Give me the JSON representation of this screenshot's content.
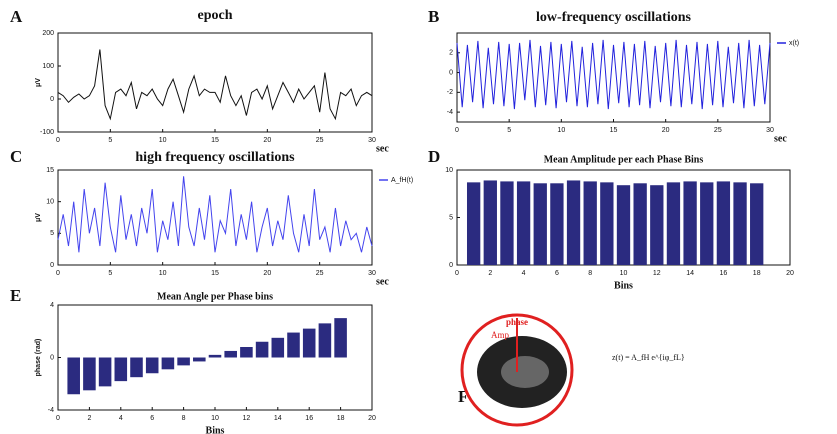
{
  "chart_data": [
    {
      "type": "line",
      "panel": "A",
      "title": "epoch",
      "ylabel": "μV",
      "xlabel": "sec",
      "x": [
        0,
        0.5,
        1,
        1.5,
        2,
        2.5,
        3,
        3.5,
        4,
        4.5,
        5,
        5.5,
        6,
        6.5,
        7,
        7.5,
        8,
        8.5,
        9,
        9.5,
        10,
        10.5,
        11,
        11.5,
        12,
        12.5,
        13,
        13.5,
        14,
        14.5,
        15,
        15.5,
        16,
        16.5,
        17,
        17.5,
        18,
        18.5,
        19,
        19.5,
        20,
        20.5,
        21,
        21.5,
        22,
        22.5,
        23,
        23.5,
        24,
        24.5,
        25,
        25.5,
        26,
        26.5,
        27,
        27.5,
        28,
        28.5,
        29,
        29.5,
        30
      ],
      "series": [
        {
          "color": "#111111",
          "values": [
            20,
            10,
            -10,
            5,
            15,
            0,
            10,
            40,
            150,
            -20,
            -60,
            20,
            30,
            10,
            50,
            -30,
            20,
            10,
            30,
            0,
            -20,
            30,
            60,
            10,
            -40,
            30,
            70,
            10,
            30,
            20,
            20,
            -10,
            70,
            10,
            -20,
            10,
            -50,
            20,
            30,
            0,
            40,
            -30,
            10,
            50,
            20,
            -10,
            30,
            0,
            20,
            40,
            -40,
            80,
            -30,
            -60,
            20,
            10,
            30,
            -20,
            10,
            20,
            10
          ]
        }
      ],
      "xlim": [
        0,
        30
      ],
      "xticks": [
        0,
        5,
        10,
        15,
        20,
        25,
        30
      ],
      "ylim": [
        -100,
        200
      ],
      "yticks": [
        -100,
        0,
        100,
        200
      ]
    },
    {
      "type": "line",
      "panel": "B",
      "title": "low-frequency oscillations",
      "xlabel": "sec",
      "x": [
        0,
        0.5,
        1,
        1.5,
        2,
        2.5,
        3,
        3.5,
        4,
        4.5,
        5,
        5.5,
        6,
        6.5,
        7,
        7.5,
        8,
        8.5,
        9,
        9.5,
        10,
        10.5,
        11,
        11.5,
        12,
        12.5,
        13,
        13.5,
        14,
        14.5,
        15,
        15.5,
        16,
        16.5,
        17,
        17.5,
        18,
        18.5,
        19,
        19.5,
        20,
        20.5,
        21,
        21.5,
        22,
        22.5,
        23,
        23.5,
        24,
        24.5,
        25,
        25.5,
        26,
        26.5,
        27,
        27.5,
        28,
        28.5,
        29,
        29.5,
        30
      ],
      "series": [
        {
          "name": "x(t)",
          "color": "#2222dd",
          "values": [
            3,
            -3.5,
            2.8,
            -3,
            3.2,
            -3.6,
            2.5,
            -3.2,
            3.1,
            -3.4,
            2.9,
            -3.7,
            3,
            -2.8,
            3.3,
            -3.5,
            2.7,
            -3.3,
            3.1,
            -3.6,
            2.9,
            -3,
            3.2,
            -3.4,
            2.6,
            -3.5,
            3,
            -3.2,
            3.3,
            -3.7,
            2.8,
            -3.1,
            3.1,
            -3.5,
            2.9,
            -3.3,
            3.2,
            -3.6,
            2.7,
            -3,
            3,
            -3.4,
            3.3,
            -3.5,
            2.8,
            -3.2,
            3.1,
            -3.7,
            2.9,
            -3.3,
            3.2,
            -3.5,
            2.6,
            -3.1,
            3,
            -3.6,
            3.3,
            -3.4,
            2.8,
            -3.2,
            3
          ]
        }
      ],
      "xlim": [
        0,
        30
      ],
      "xticks": [
        0,
        5,
        10,
        15,
        20,
        25,
        30
      ],
      "ylim": [
        -5,
        4
      ],
      "yticks": [
        -4,
        -2,
        0,
        2
      ]
    },
    {
      "type": "line",
      "panel": "C",
      "title": "high frequency oscillations",
      "ylabel": "μV",
      "xlabel": "sec",
      "x": [
        0,
        0.5,
        1,
        1.5,
        2,
        2.5,
        3,
        3.5,
        4,
        4.5,
        5,
        5.5,
        6,
        6.5,
        7,
        7.5,
        8,
        8.5,
        9,
        9.5,
        10,
        10.5,
        11,
        11.5,
        12,
        12.5,
        13,
        13.5,
        14,
        14.5,
        15,
        15.5,
        16,
        16.5,
        17,
        17.5,
        18,
        18.5,
        19,
        19.5,
        20,
        20.5,
        21,
        21.5,
        22,
        22.5,
        23,
        23.5,
        24,
        24.5,
        25,
        25.5,
        26,
        26.5,
        27,
        27.5,
        28,
        28.5,
        29,
        29.5,
        30
      ],
      "series": [
        {
          "name": "A_fH(t)",
          "color": "#4444ee",
          "values": [
            4,
            8,
            3,
            10,
            2,
            12,
            5,
            9,
            3,
            13,
            6,
            2,
            11,
            4,
            8,
            3,
            9,
            5,
            12,
            2,
            7,
            4,
            10,
            3,
            14,
            6,
            3,
            9,
            4,
            11,
            2,
            7,
            5,
            12,
            3,
            8,
            4,
            10,
            2,
            6,
            9,
            3,
            7,
            4,
            11,
            5,
            2,
            8,
            3,
            12,
            4,
            6,
            2,
            9,
            3,
            7,
            4,
            5,
            2,
            6,
            3
          ]
        }
      ],
      "xlim": [
        0,
        30
      ],
      "xticks": [
        0,
        5,
        10,
        15,
        20,
        25,
        30
      ],
      "ylim": [
        0,
        15
      ],
      "yticks": [
        0,
        5,
        10,
        15
      ]
    },
    {
      "type": "bar",
      "panel": "D",
      "title": "Mean Amplitude per each Phase Bins",
      "xlabel": "Bins",
      "color": "#2b2b80",
      "x": [
        1,
        2,
        3,
        4,
        5,
        6,
        7,
        8,
        9,
        10,
        11,
        12,
        13,
        14,
        15,
        16,
        17,
        18
      ],
      "values": [
        8.7,
        8.9,
        8.8,
        8.8,
        8.6,
        8.6,
        8.9,
        8.8,
        8.7,
        8.4,
        8.6,
        8.4,
        8.7,
        8.8,
        8.7,
        8.8,
        8.7,
        8.6
      ],
      "xlim": [
        0,
        20
      ],
      "xticks": [
        0,
        2,
        4,
        6,
        8,
        10,
        12,
        14,
        16,
        18,
        20
      ],
      "ylim": [
        0,
        10
      ],
      "yticks": [
        0,
        5,
        10
      ]
    },
    {
      "type": "bar",
      "panel": "E",
      "title": "Mean Angle per Phase bins",
      "ylabel": "phase (rad)",
      "xlabel": "Bins",
      "color": "#2b2b80",
      "x": [
        1,
        2,
        3,
        4,
        5,
        6,
        7,
        8,
        9,
        10,
        11,
        12,
        13,
        14,
        15,
        16,
        17,
        18
      ],
      "values": [
        -2.8,
        -2.5,
        -2.2,
        -1.8,
        -1.5,
        -1.2,
        -0.9,
        -0.6,
        -0.3,
        0.2,
        0.5,
        0.8,
        1.2,
        1.5,
        1.9,
        2.2,
        2.6,
        3
      ],
      "xlim": [
        0,
        20
      ],
      "xticks": [
        0,
        2,
        4,
        6,
        8,
        10,
        12,
        14,
        16,
        18,
        20
      ],
      "ylim": [
        -4,
        4
      ],
      "yticks": [
        -4,
        0,
        4
      ]
    }
  ],
  "panel_f": {
    "panel": "F",
    "phase_label": "phase",
    "amp_label": "Amp",
    "formula": "z(t) = A_fH e^{iφ_fL}"
  }
}
